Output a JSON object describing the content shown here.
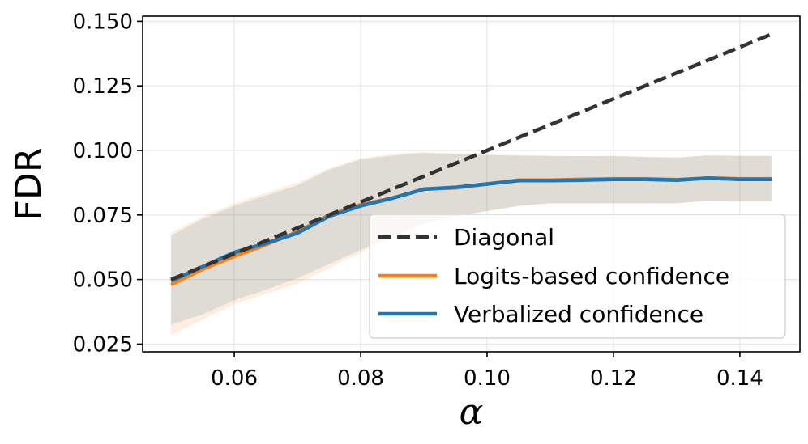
{
  "chart_data": {
    "type": "line",
    "title": "",
    "xlabel": "α",
    "ylabel": "FDR",
    "xlim": [
      0.0455,
      0.1495
    ],
    "ylim": [
      0.022,
      0.152
    ],
    "xticks": [
      0.06,
      0.08,
      0.1,
      0.12,
      0.14
    ],
    "xtick_labels": [
      "0.06",
      "0.08",
      "0.10",
      "0.12",
      "0.14"
    ],
    "yticks": [
      0.025,
      0.05,
      0.075,
      0.1,
      0.125,
      0.15
    ],
    "ytick_labels": [
      "0.025",
      "0.050",
      "0.075",
      "0.100",
      "0.125",
      "0.150"
    ],
    "grid": true,
    "legend_position": "lower-right",
    "x": [
      0.05,
      0.055,
      0.06,
      0.065,
      0.07,
      0.075,
      0.08,
      0.085,
      0.09,
      0.095,
      0.1,
      0.105,
      0.11,
      0.115,
      0.12,
      0.125,
      0.13,
      0.135,
      0.14,
      0.145
    ],
    "series": [
      {
        "name": "Diagonal",
        "color": "#333333",
        "style": "dashed",
        "values": [
          0.05,
          0.055,
          0.06,
          0.065,
          0.07,
          0.075,
          0.08,
          0.085,
          0.09,
          0.095,
          0.1,
          0.105,
          0.11,
          0.115,
          0.12,
          0.125,
          0.13,
          0.135,
          0.14,
          0.145
        ]
      },
      {
        "name": "Logits-based confidence",
        "color": "#ff7f0e",
        "style": "solid",
        "values": [
          0.048,
          0.054,
          0.059,
          0.0635,
          0.0685,
          0.075,
          0.079,
          0.0815,
          0.085,
          0.0855,
          0.087,
          0.0885,
          0.0885,
          0.0888,
          0.089,
          0.089,
          0.0887,
          0.0893,
          0.089,
          0.089
        ],
        "band_lower": [
          0.0285,
          0.0345,
          0.0405,
          0.0445,
          0.0485,
          0.0545,
          0.0605,
          0.0665,
          0.0715,
          0.0745,
          0.0765,
          0.0785,
          0.0795,
          0.0795,
          0.0795,
          0.0795,
          0.0795,
          0.0805,
          0.0803,
          0.0803
        ],
        "band_upper": [
          0.068,
          0.0745,
          0.0795,
          0.0835,
          0.0875,
          0.093,
          0.097,
          0.0985,
          0.0995,
          0.0988,
          0.0985,
          0.0982,
          0.098,
          0.0978,
          0.098,
          0.0975,
          0.0972,
          0.0982,
          0.098,
          0.098
        ]
      },
      {
        "name": "Verbalized confidence",
        "color": "#1f77b4",
        "style": "solid",
        "values": [
          0.0495,
          0.055,
          0.0605,
          0.064,
          0.068,
          0.0745,
          0.0785,
          0.0815,
          0.085,
          0.0857,
          0.087,
          0.0883,
          0.0883,
          0.0885,
          0.0888,
          0.0888,
          0.0885,
          0.0893,
          0.0888,
          0.0888
        ],
        "band_lower": [
          0.0325,
          0.0365,
          0.042,
          0.046,
          0.0505,
          0.056,
          0.0615,
          0.0665,
          0.0715,
          0.0745,
          0.0765,
          0.0785,
          0.0795,
          0.0795,
          0.0795,
          0.0795,
          0.0795,
          0.0805,
          0.0803,
          0.0803
        ],
        "band_upper": [
          0.067,
          0.0735,
          0.0785,
          0.0825,
          0.0865,
          0.0925,
          0.0965,
          0.098,
          0.099,
          0.0985,
          0.0982,
          0.098,
          0.0978,
          0.0978,
          0.0978,
          0.0975,
          0.0972,
          0.098,
          0.0978,
          0.0978
        ]
      }
    ]
  }
}
